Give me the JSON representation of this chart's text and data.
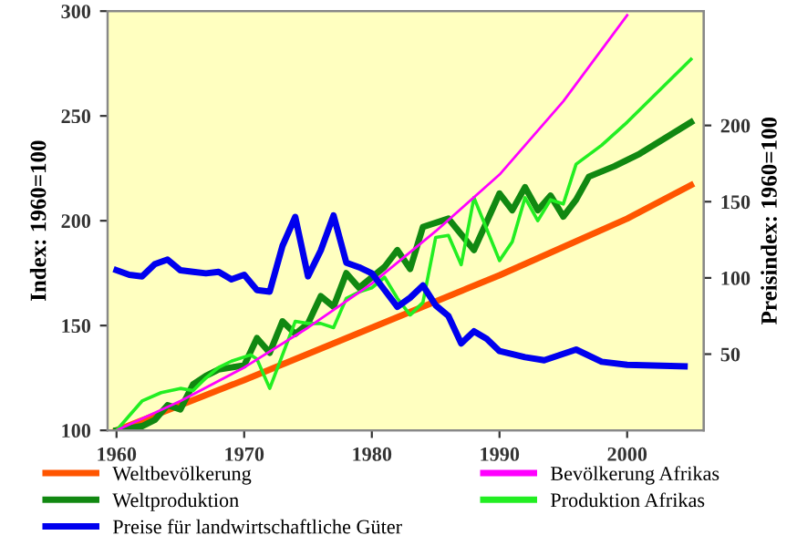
{
  "chart_data": {
    "type": "line",
    "ylabel": "Index: 1960=100",
    "y2label": "Preisindex: 1960=100",
    "xlim": [
      1959.3,
      2006
    ],
    "xticks": [
      1960,
      1970,
      1980,
      1990,
      2000
    ],
    "ylim": [
      100,
      300
    ],
    "yticks": [
      100,
      150,
      200,
      250,
      300
    ],
    "y2lim": [
      0,
      275
    ],
    "y2ticks": [
      50,
      100,
      150,
      200
    ],
    "grid": false,
    "legend": "bottom",
    "marker": "none",
    "line_style": "solid",
    "series": [
      {
        "name": "Weltbevölkerung",
        "color": "#ff5500",
        "x": [
          1960,
          1970,
          1980,
          1990,
          2000,
          2005
        ],
        "values": [
          100,
          124,
          149,
          174,
          201,
          217
        ]
      },
      {
        "name": "Bevölkerung Afrikas",
        "color": "#ff00ff",
        "x": [
          1960,
          1965,
          1970,
          1975,
          1980,
          1985,
          1990,
          1995,
          2000
        ],
        "values": [
          100,
          114,
          130,
          149,
          170,
          195,
          222,
          257,
          298
        ]
      },
      {
        "name": "Weltproduktion",
        "color": "#118811",
        "x": [
          1960,
          1961,
          1962,
          1963,
          1964,
          1965,
          1966,
          1967,
          1968,
          1969,
          1970,
          1971,
          1972,
          1973,
          1974,
          1975,
          1976,
          1977,
          1978,
          1979,
          1980,
          1981,
          1982,
          1983,
          1984,
          1986,
          1988,
          1990,
          1991,
          1992,
          1993,
          1994,
          1995,
          1996,
          1997,
          1999,
          2001,
          2005
        ],
        "values": [
          100,
          101,
          102,
          105,
          112,
          110,
          122,
          126,
          129,
          130,
          131,
          144,
          137,
          152,
          146,
          151,
          164,
          159,
          175,
          168,
          173,
          178,
          186,
          177,
          197,
          201,
          186,
          213,
          205,
          216,
          205,
          212,
          202,
          210,
          221,
          226,
          232,
          247
        ]
      },
      {
        "name": "Produktion Afrikas",
        "color": "#22ee22",
        "x": [
          1960,
          1961,
          1962,
          1963.5,
          1965,
          1966,
          1967,
          1968,
          1969,
          1970.5,
          1971,
          1972,
          1973,
          1974,
          1975,
          1976,
          1977,
          1978,
          1979,
          1980,
          1981,
          1982,
          1983,
          1984,
          1985,
          1986,
          1987,
          1988,
          1990,
          1991,
          1992,
          1993,
          1994,
          1995,
          1996,
          1998,
          2000,
          2005
        ],
        "values": [
          100,
          107,
          114,
          118,
          120,
          119,
          125,
          130,
          133,
          136,
          134,
          120,
          136,
          152,
          151,
          151,
          149,
          163,
          166,
          168,
          173,
          163,
          155,
          161,
          192,
          193,
          179,
          211,
          181,
          190,
          211,
          200,
          210,
          208,
          227,
          236,
          247,
          277
        ]
      },
      {
        "name": "Preise für landwirtschaftliche Güter",
        "color": "#0000ee",
        "axis": "y2",
        "x": [
          1960,
          1961,
          1962,
          1963,
          1964,
          1965,
          1966,
          1967,
          1968,
          1969,
          1970,
          1971,
          1972,
          1973,
          1974,
          1975,
          1976,
          1977,
          1978,
          1979,
          1980,
          1981,
          1982,
          1983,
          1984,
          1985,
          1986,
          1987,
          1988,
          1989,
          1990,
          1992,
          1993.5,
          1996,
          1998,
          2000,
          2004.5
        ],
        "values": [
          105,
          102,
          101,
          109,
          112,
          105,
          104,
          103,
          104,
          99,
          102,
          92,
          91,
          121,
          140,
          101,
          118,
          141,
          110,
          107,
          103,
          92,
          81,
          87,
          95,
          82,
          75,
          57,
          65,
          60,
          52,
          48,
          46,
          53,
          45,
          43,
          42
        ]
      }
    ]
  }
}
